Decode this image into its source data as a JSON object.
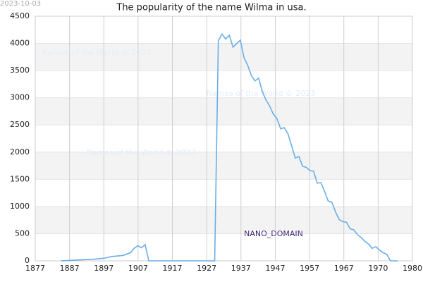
{
  "chart_data": {
    "type": "line",
    "title": "The popularity of the name Wilma in usa.",
    "date_stamp": "2023-10-03",
    "watermarks": [
      "Names of the World © 2023",
      "Names of the World © 2023",
      "Names of the World © 2023"
    ],
    "domain_label": "NANO_DOMAIN",
    "x": [
      1884,
      1887,
      1890,
      1893,
      1896,
      1898,
      1901,
      1903,
      1904,
      1905,
      1906,
      1907,
      1908,
      1926,
      1927,
      1928,
      1929,
      1930,
      1931,
      1933,
      1934,
      1935,
      1936,
      1937,
      1938,
      1939,
      1940,
      1941,
      1942,
      1943,
      1944,
      1945,
      1946,
      1947,
      1948,
      1949,
      1950,
      1951,
      1952,
      1953,
      1954,
      1955,
      1956,
      1957,
      1958,
      1959,
      1960,
      1961,
      1962,
      1963,
      1964,
      1965,
      1966,
      1967,
      1968,
      1969,
      1970,
      1971,
      1972,
      1973,
      1974,
      1976
    ],
    "series": [
      {
        "color": "#6aaee8",
        "values": [
          0,
          10,
          20,
          30,
          50,
          80,
          100,
          150,
          230,
          280,
          240,
          300,
          0,
          0,
          4050,
          4170,
          4080,
          4150,
          3930,
          4060,
          3740,
          3600,
          3410,
          3310,
          3360,
          3120,
          2960,
          2850,
          2700,
          2620,
          2430,
          2450,
          2340,
          2120,
          1890,
          1920,
          1740,
          1720,
          1660,
          1650,
          1430,
          1440,
          1280,
          1100,
          1080,
          900,
          760,
          720,
          710,
          590,
          570,
          480,
          430,
          360,
          310,
          230,
          260,
          200,
          150,
          120,
          0,
          0
        ]
      }
    ],
    "xlim": [
      1877,
      1980
    ],
    "xticks": [
      1877,
      {
        "value": 1886.36,
        "label": "1887"
      },
      {
        "value": 1895.73,
        "label": "1897"
      },
      {
        "value": 1905.09,
        "label": "1907"
      },
      {
        "value": 1914.45,
        "label": "1917"
      },
      {
        "value": 1923.82,
        "label": "1927"
      },
      {
        "value": 1933.18,
        "label": "1937"
      },
      {
        "value": 1942.55,
        "label": "1947"
      },
      {
        "value": 1951.91,
        "label": "1957"
      },
      {
        "value": 1961.27,
        "label": "1967"
      },
      {
        "value": 1970.64,
        "label": "1970"
      },
      1980
    ],
    "ylim": [
      0,
      4500
    ],
    "yticks": [
      0,
      500,
      1000,
      1500,
      2000,
      2500,
      3000,
      3500,
      4000,
      4500
    ],
    "grid": true
  }
}
